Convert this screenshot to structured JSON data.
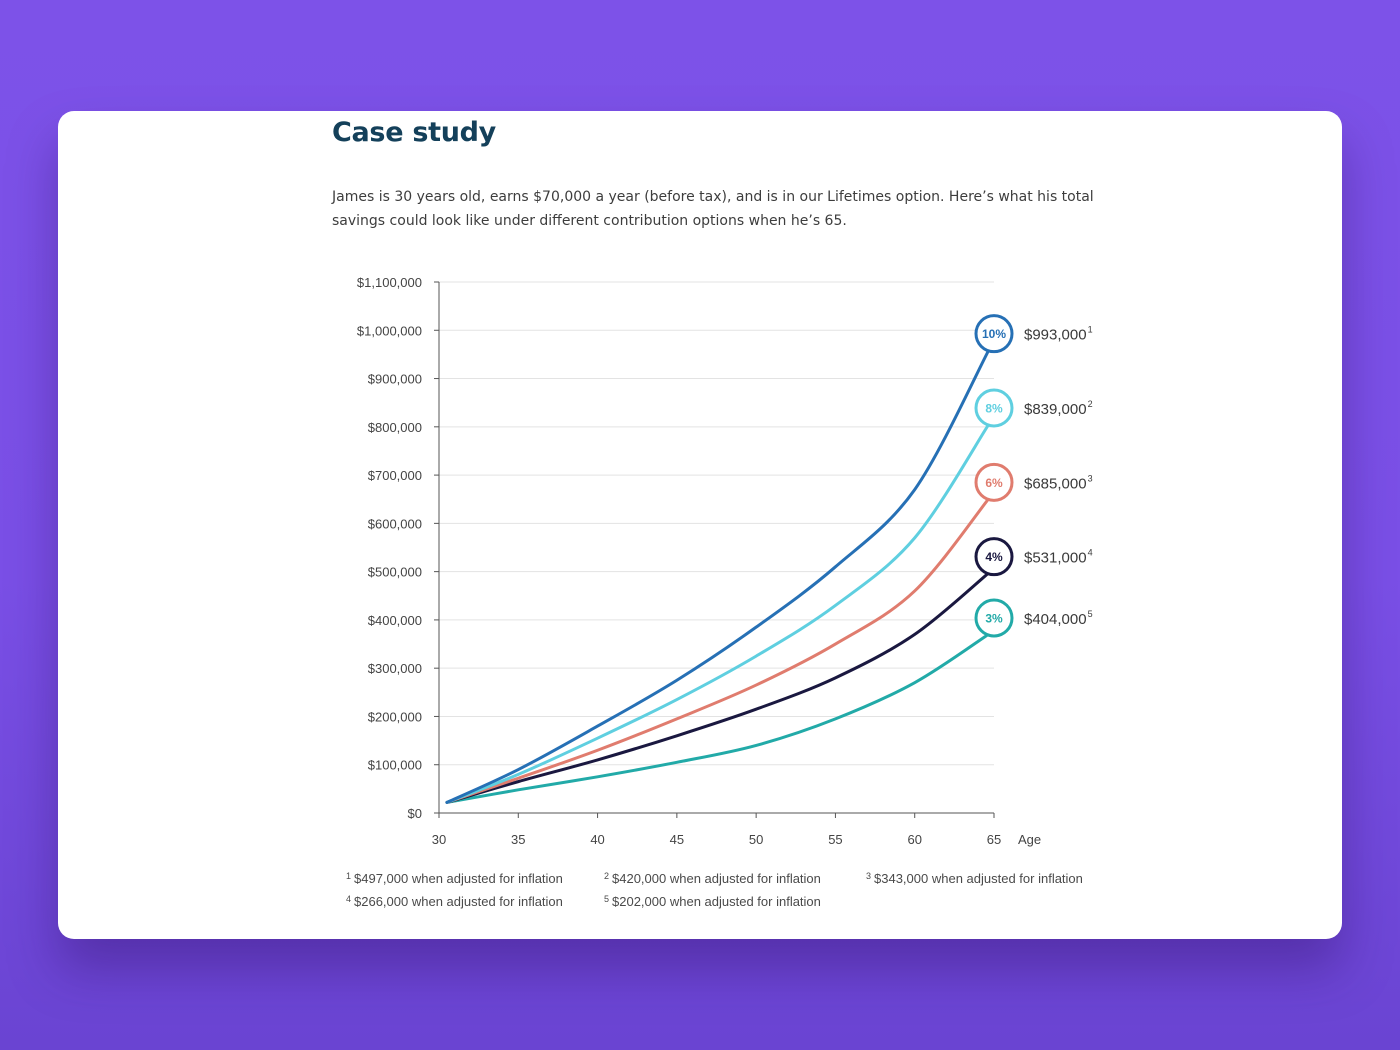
{
  "page": {
    "title": "Case study",
    "intro": "James is 30 years old, earns $70,000 a year (before tax), and is in our Lifetimes option. Here’s what his total savings could look like under different contribution options when he’s 65."
  },
  "chart_data": {
    "type": "line",
    "xlabel": "Age",
    "ylabel": "",
    "x_ticks": [
      "30",
      "35",
      "40",
      "45",
      "50",
      "55",
      "60",
      "65"
    ],
    "y_ticks": [
      "$0",
      "$100,000",
      "$200,000",
      "$300,000",
      "$400,000",
      "$500,000",
      "$600,000",
      "$700,000",
      "$800,000",
      "$900,000",
      "$1,000,000",
      "$1,100,000"
    ],
    "xlim": [
      30,
      65
    ],
    "ylim": [
      0,
      1100000
    ],
    "grid": true,
    "x": [
      30.5,
      35,
      40,
      45,
      50,
      55,
      60,
      65
    ],
    "series": [
      {
        "name": "10%",
        "color": "#2670b5",
        "end_label": "$993,000",
        "footnote": "1",
        "values": [
          22000,
          90000,
          180000,
          275000,
          385000,
          510000,
          670000,
          993000
        ]
      },
      {
        "name": "8%",
        "color": "#5fcfe0",
        "end_label": "$839,000",
        "footnote": "2",
        "values": [
          22000,
          80000,
          155000,
          235000,
          325000,
          430000,
          570000,
          839000
        ]
      },
      {
        "name": "6%",
        "color": "#e07c6e",
        "end_label": "$685,000",
        "footnote": "3",
        "values": [
          22000,
          72000,
          130000,
          195000,
          265000,
          350000,
          460000,
          685000
        ]
      },
      {
        "name": "4%",
        "color": "#1a1840",
        "end_label": "$531,000",
        "footnote": "4",
        "values": [
          22000,
          65000,
          110000,
          160000,
          215000,
          280000,
          370000,
          531000
        ]
      },
      {
        "name": "3%",
        "color": "#22aaa8",
        "end_label": "$404,000",
        "footnote": "5",
        "values": [
          22000,
          48000,
          75000,
          105000,
          140000,
          195000,
          270000,
          404000
        ]
      }
    ]
  },
  "footnotes": [
    {
      "num": "1",
      "text": "$497,000 when adjusted for inflation"
    },
    {
      "num": "2",
      "text": "$420,000 when adjusted for inflation"
    },
    {
      "num": "3",
      "text": "$343,000 when adjusted for inflation"
    },
    {
      "num": "4",
      "text": "$266,000 when adjusted for inflation"
    },
    {
      "num": "5",
      "text": "$202,000 when adjusted for inflation"
    }
  ]
}
